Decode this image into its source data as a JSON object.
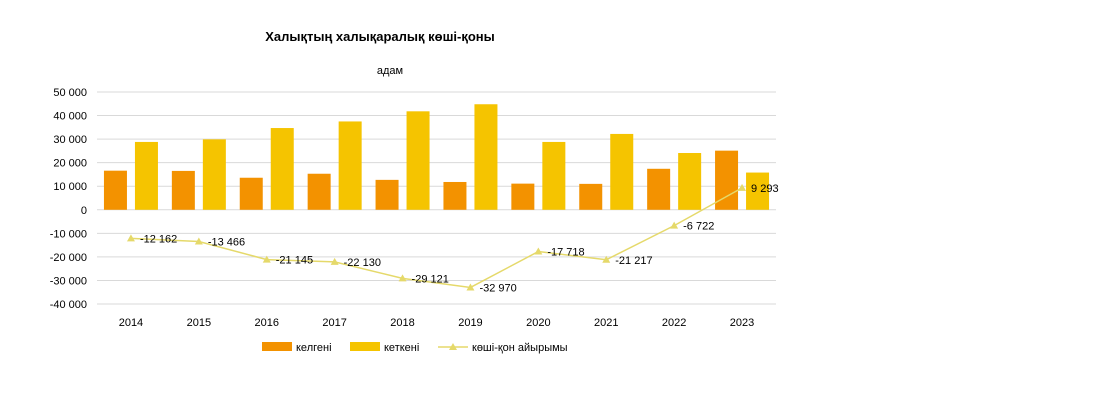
{
  "chart_data": {
    "type": "bar",
    "title": "Халықтың халықаралық көші-қоны",
    "ylabel": "адам",
    "xlabel": "",
    "categories": [
      "2014",
      "2015",
      "2016",
      "2017",
      "2018",
      "2019",
      "2020",
      "2021",
      "2022",
      "2023"
    ],
    "ylim": [
      -40000,
      50000
    ],
    "ytick_step": 10000,
    "ytick_labels": [
      "50 000",
      "40 000",
      "30 000",
      "20 000",
      "10 000",
      "0",
      "-10 000",
      "-20 000",
      "-30 000",
      "-40 000"
    ],
    "series": [
      {
        "name": "келгені",
        "kind": "bar",
        "color": "#f39200",
        "values": [
          16600,
          16500,
          13600,
          15300,
          12700,
          11800,
          11100,
          11000,
          17400,
          25100
        ]
      },
      {
        "name": "кеткені",
        "kind": "bar",
        "color": "#f5c400",
        "values": [
          28800,
          29900,
          34700,
          37500,
          41800,
          44800,
          28800,
          32200,
          24100,
          15800
        ]
      },
      {
        "name": "көші-қон айырымы",
        "kind": "line",
        "color": "#e5d96a",
        "values": [
          -12162,
          -13466,
          -21145,
          -22130,
          -29121,
          -32970,
          -17718,
          -21217,
          -6722,
          9293
        ],
        "labels": [
          "-12 162",
          "-13 466",
          "-21 145",
          "-22 130",
          "-29 121",
          "-32 970",
          "-17 718",
          "-21 217",
          "-6 722",
          "9 293"
        ]
      }
    ],
    "grid": true,
    "legend_position": "bottom"
  }
}
